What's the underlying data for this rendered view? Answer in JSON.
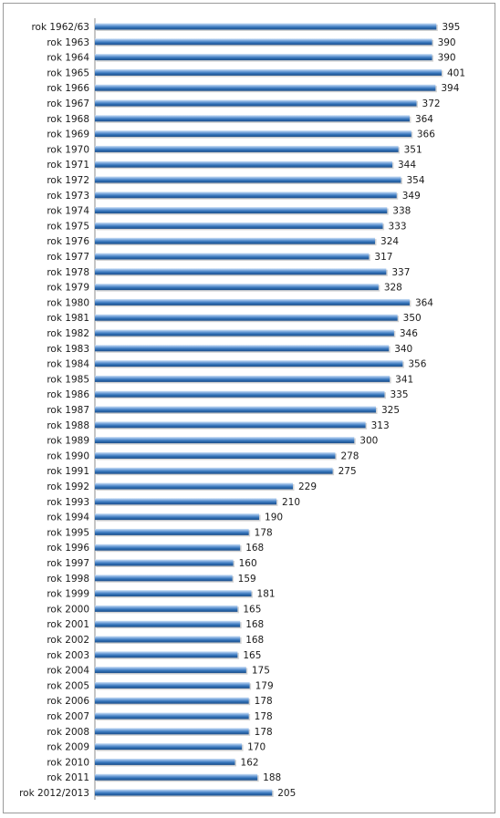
{
  "chart_data": {
    "type": "bar",
    "orientation": "horizontal",
    "title": "",
    "xlabel": "",
    "ylabel": "",
    "grid": false,
    "legend": "none",
    "xlim": [
      0,
      401
    ],
    "bar_color": "#2f6fb5",
    "bar_highlight": "#8fb8e6",
    "categories": [
      "rok 1962/63",
      "rok 1963",
      "rok 1964",
      "rok 1965",
      "rok 1966",
      "rok 1967",
      "rok 1968",
      "rok 1969",
      "rok 1970",
      "rok 1971",
      "rok 1972",
      "rok 1973",
      "rok 1974",
      "rok 1975",
      "rok 1976",
      "rok 1977",
      "rok 1978",
      "rok 1979",
      "rok 1980",
      "rok 1981",
      "rok 1982",
      "rok 1983",
      "rok 1984",
      "rok 1985",
      "rok 1986",
      "rok 1987",
      "rok 1988",
      "rok 1989",
      "rok 1990",
      "rok 1991",
      "rok 1992",
      "rok 1993",
      "rok 1994",
      "rok 1995",
      "rok 1996",
      "rok 1997",
      "rok 1998",
      "rok 1999",
      "rok 2000",
      "rok 2001",
      "rok 2002",
      "rok 2003",
      "rok 2004",
      "rok 2005",
      "rok 2006",
      "rok 2007",
      "rok 2008",
      "rok 2009",
      "rok 2010",
      "rok 2011",
      "rok 2012/2013"
    ],
    "values": [
      395,
      390,
      390,
      401,
      394,
      372,
      364,
      366,
      351,
      344,
      354,
      349,
      338,
      333,
      324,
      317,
      337,
      328,
      364,
      350,
      346,
      340,
      356,
      341,
      335,
      325,
      313,
      300,
      278,
      275,
      229,
      210,
      190,
      178,
      168,
      160,
      159,
      181,
      165,
      168,
      168,
      165,
      175,
      179,
      178,
      178,
      178,
      170,
      162,
      188,
      205
    ]
  }
}
